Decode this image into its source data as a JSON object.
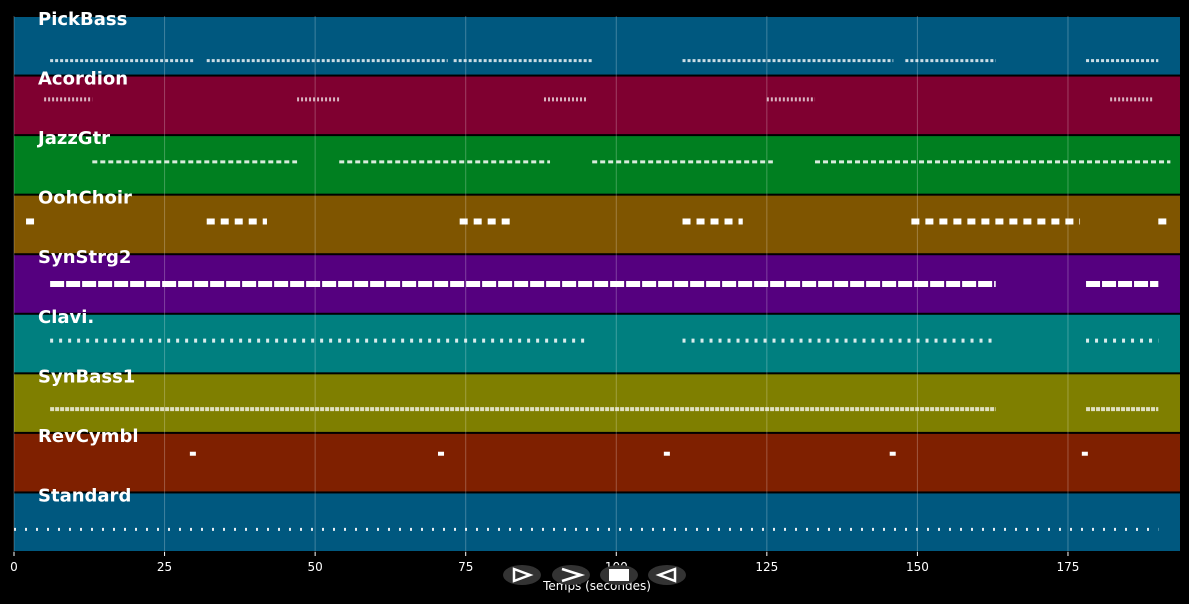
{
  "chart_data": {
    "type": "piano-roll",
    "xlabel": "Temps (secondes)",
    "xlim": [
      0,
      193.6
    ],
    "xticks": [
      0,
      25,
      50,
      75,
      100,
      125,
      150,
      175
    ],
    "grid": true,
    "tracks": [
      {
        "name": "PickBass",
        "color": "#00587f",
        "segments": [
          [
            6,
            30
          ],
          [
            32,
            72
          ],
          [
            73,
            96
          ],
          [
            111,
            146
          ],
          [
            148,
            163
          ],
          [
            178,
            190
          ]
        ]
      },
      {
        "name": "Acordion",
        "color": "#7f0030",
        "segments": [
          [
            5,
            13
          ],
          [
            47,
            54
          ],
          [
            88,
            95
          ],
          [
            125,
            133
          ],
          [
            182,
            189
          ]
        ]
      },
      {
        "name": "JazzGtr",
        "color": "#007f20",
        "segments": [
          [
            13,
            47
          ],
          [
            54,
            89
          ],
          [
            96,
            126
          ],
          [
            133,
            192
          ]
        ]
      },
      {
        "name": "OohChoir",
        "color": "#7f5500",
        "segments": [
          [
            2,
            4
          ],
          [
            32,
            42
          ],
          [
            74,
            83
          ],
          [
            111,
            121
          ],
          [
            149,
            177
          ],
          [
            190,
            192
          ]
        ]
      },
      {
        "name": "SynStrg2",
        "color": "#55007f",
        "segments": [
          [
            6,
            163
          ],
          [
            178,
            190
          ]
        ]
      },
      {
        "name": "Clavi.",
        "color": "#007f7f",
        "segments": [
          [
            6,
            95
          ],
          [
            111,
            163
          ],
          [
            178,
            190
          ]
        ]
      },
      {
        "name": "SynBass1",
        "color": "#7f7f00",
        "segments": [
          [
            6,
            163
          ],
          [
            178,
            190
          ]
        ]
      },
      {
        "name": "RevCymbl",
        "color": "#7f2000",
        "segments": [
          [
            29.2,
            30.2
          ],
          [
            70.4,
            71.4
          ],
          [
            107.9,
            108.9
          ],
          [
            145.4,
            146.4
          ],
          [
            177.3,
            178.3
          ]
        ]
      },
      {
        "name": "Standard",
        "color": "#00587f",
        "segments": [
          [
            0,
            190
          ]
        ]
      }
    ]
  }
}
